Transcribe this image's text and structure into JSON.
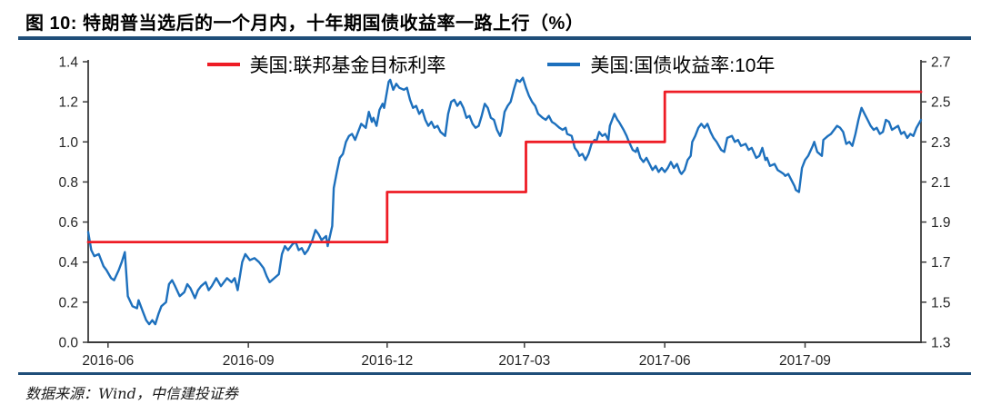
{
  "page": {
    "title": "图 10: 特朗普当选后的一个月内，十年期国债收益率一路上行（%）",
    "source_note": "数据来源：Wind，中信建投证券"
  },
  "colors": {
    "divider": "#1f4e79",
    "fed_funds_line": "#ee1c25",
    "treasury_line": "#1d70bd",
    "axis": "#3a3a3a",
    "tick_text": "#262626"
  },
  "chart_data": {
    "type": "line",
    "title": "图 10: 特朗普当选后的一个月内，十年期国债收益率一路上行（%）",
    "grid": false,
    "legend_position": "top-center",
    "x_domain": [
      "2016-06-02",
      "2017-11-30"
    ],
    "x_ticks": [
      {
        "date": "2016-06-15",
        "label": "2016-06"
      },
      {
        "date": "2016-09-15",
        "label": "2016-09"
      },
      {
        "date": "2016-12-15",
        "label": "2016-12"
      },
      {
        "date": "2017-03-15",
        "label": "2017-03"
      },
      {
        "date": "2017-06-15",
        "label": "2017-06"
      },
      {
        "date": "2017-09-15",
        "label": "2017-09"
      }
    ],
    "y_left": {
      "min": 0.0,
      "max": 1.4,
      "step": 0.2,
      "decimals": 1
    },
    "y_right": {
      "min": 1.3,
      "max": 2.7,
      "step": 0.2,
      "decimals": 1
    },
    "series": [
      {
        "name": "美国:联邦基金目标利率",
        "axis": "left",
        "draw": "step",
        "color_key": "fed_funds_line",
        "points": [
          [
            "2016-06-02",
            0.5
          ],
          [
            "2016-12-15",
            0.5
          ],
          [
            "2016-12-15",
            0.75
          ],
          [
            "2017-03-16",
            0.75
          ],
          [
            "2017-03-16",
            1.0
          ],
          [
            "2017-06-15",
            1.0
          ],
          [
            "2017-06-15",
            1.25
          ],
          [
            "2017-11-30",
            1.25
          ]
        ]
      },
      {
        "name": "美国:国债收益率:10年",
        "axis": "right",
        "draw": "line",
        "color_key": "treasury_line",
        "points": [
          [
            "2016-06-02",
            1.85
          ],
          [
            "2016-06-04",
            1.76
          ],
          [
            "2016-06-06",
            1.73
          ],
          [
            "2016-06-09",
            1.74
          ],
          [
            "2016-06-12",
            1.68
          ],
          [
            "2016-06-14",
            1.66
          ],
          [
            "2016-06-17",
            1.62
          ],
          [
            "2016-06-19",
            1.61
          ],
          [
            "2016-06-22",
            1.66
          ],
          [
            "2016-06-24",
            1.7
          ],
          [
            "2016-06-26",
            1.75
          ],
          [
            "2016-06-28",
            1.53
          ],
          [
            "2016-07-01",
            1.48
          ],
          [
            "2016-07-04",
            1.47
          ],
          [
            "2016-07-05",
            1.51
          ],
          [
            "2016-07-08",
            1.45
          ],
          [
            "2016-07-10",
            1.41
          ],
          [
            "2016-07-12",
            1.39
          ],
          [
            "2016-07-14",
            1.41
          ],
          [
            "2016-07-16",
            1.39
          ],
          [
            "2016-07-18",
            1.44
          ],
          [
            "2016-07-20",
            1.48
          ],
          [
            "2016-07-23",
            1.5
          ],
          [
            "2016-07-25",
            1.59
          ],
          [
            "2016-07-27",
            1.61
          ],
          [
            "2016-07-29",
            1.58
          ],
          [
            "2016-08-01",
            1.53
          ],
          [
            "2016-08-04",
            1.55
          ],
          [
            "2016-08-06",
            1.59
          ],
          [
            "2016-08-08",
            1.57
          ],
          [
            "2016-08-11",
            1.52
          ],
          [
            "2016-08-13",
            1.56
          ],
          [
            "2016-08-15",
            1.58
          ],
          [
            "2016-08-18",
            1.6
          ],
          [
            "2016-08-20",
            1.56
          ],
          [
            "2016-08-22",
            1.58
          ],
          [
            "2016-08-25",
            1.62
          ],
          [
            "2016-08-28",
            1.58
          ],
          [
            "2016-08-30",
            1.6
          ],
          [
            "2016-09-01",
            1.62
          ],
          [
            "2016-09-04",
            1.6
          ],
          [
            "2016-09-06",
            1.62
          ],
          [
            "2016-09-08",
            1.56
          ],
          [
            "2016-09-11",
            1.7
          ],
          [
            "2016-09-13",
            1.74
          ],
          [
            "2016-09-16",
            1.71
          ],
          [
            "2016-09-19",
            1.72
          ],
          [
            "2016-09-22",
            1.7
          ],
          [
            "2016-09-25",
            1.67
          ],
          [
            "2016-09-27",
            1.63
          ],
          [
            "2016-09-29",
            1.6
          ],
          [
            "2016-10-02",
            1.62
          ],
          [
            "2016-10-05",
            1.64
          ],
          [
            "2016-10-07",
            1.74
          ],
          [
            "2016-10-09",
            1.78
          ],
          [
            "2016-10-11",
            1.76
          ],
          [
            "2016-10-14",
            1.79
          ],
          [
            "2016-10-16",
            1.8
          ],
          [
            "2016-10-18",
            1.76
          ],
          [
            "2016-10-20",
            1.77
          ],
          [
            "2016-10-22",
            1.74
          ],
          [
            "2016-10-24",
            1.76
          ],
          [
            "2016-10-27",
            1.81
          ],
          [
            "2016-10-29",
            1.86
          ],
          [
            "2016-10-31",
            1.84
          ],
          [
            "2016-11-02",
            1.81
          ],
          [
            "2016-11-05",
            1.83
          ],
          [
            "2016-11-06",
            1.78
          ],
          [
            "2016-11-09",
            1.88
          ],
          [
            "2016-11-10",
            2.07
          ],
          [
            "2016-11-12",
            2.15
          ],
          [
            "2016-11-14",
            2.22
          ],
          [
            "2016-11-16",
            2.24
          ],
          [
            "2016-11-18",
            2.3
          ],
          [
            "2016-11-20",
            2.33
          ],
          [
            "2016-11-22",
            2.34
          ],
          [
            "2016-11-24",
            2.31
          ],
          [
            "2016-11-26",
            2.35
          ],
          [
            "2016-11-28",
            2.39
          ],
          [
            "2016-12-01",
            2.37
          ],
          [
            "2016-12-03",
            2.45
          ],
          [
            "2016-12-05",
            2.4
          ],
          [
            "2016-12-06",
            2.42
          ],
          [
            "2016-12-08",
            2.38
          ],
          [
            "2016-12-10",
            2.46
          ],
          [
            "2016-12-12",
            2.49
          ],
          [
            "2016-12-13",
            2.47
          ],
          [
            "2016-12-16",
            2.6
          ],
          [
            "2016-12-17",
            2.61
          ],
          [
            "2016-12-19",
            2.56
          ],
          [
            "2016-12-21",
            2.59
          ],
          [
            "2016-12-23",
            2.57
          ],
          [
            "2016-12-26",
            2.56
          ],
          [
            "2016-12-28",
            2.57
          ],
          [
            "2016-12-30",
            2.51
          ],
          [
            "2017-01-01",
            2.47
          ],
          [
            "2017-01-03",
            2.48
          ],
          [
            "2017-01-05",
            2.44
          ],
          [
            "2017-01-07",
            2.46
          ],
          [
            "2017-01-09",
            2.41
          ],
          [
            "2017-01-11",
            2.38
          ],
          [
            "2017-01-13",
            2.4
          ],
          [
            "2017-01-15",
            2.37
          ],
          [
            "2017-01-17",
            2.38
          ],
          [
            "2017-01-19",
            2.35
          ],
          [
            "2017-01-22",
            2.33
          ],
          [
            "2017-01-24",
            2.44
          ],
          [
            "2017-01-26",
            2.5
          ],
          [
            "2017-01-28",
            2.51
          ],
          [
            "2017-01-30",
            2.48
          ],
          [
            "2017-02-01",
            2.5
          ],
          [
            "2017-02-03",
            2.47
          ],
          [
            "2017-02-05",
            2.42
          ],
          [
            "2017-02-07",
            2.43
          ],
          [
            "2017-02-09",
            2.39
          ],
          [
            "2017-02-11",
            2.37
          ],
          [
            "2017-02-13",
            2.38
          ],
          [
            "2017-02-15",
            2.43
          ],
          [
            "2017-02-17",
            2.49
          ],
          [
            "2017-02-19",
            2.47
          ],
          [
            "2017-02-21",
            2.42
          ],
          [
            "2017-02-23",
            2.41
          ],
          [
            "2017-02-25",
            2.36
          ],
          [
            "2017-02-27",
            2.33
          ],
          [
            "2017-02-28",
            2.35
          ],
          [
            "2017-03-02",
            2.45
          ],
          [
            "2017-03-04",
            2.48
          ],
          [
            "2017-03-06",
            2.5
          ],
          [
            "2017-03-08",
            2.56
          ],
          [
            "2017-03-10",
            2.61
          ],
          [
            "2017-03-12",
            2.6
          ],
          [
            "2017-03-14",
            2.62
          ],
          [
            "2017-03-16",
            2.57
          ],
          [
            "2017-03-18",
            2.53
          ],
          [
            "2017-03-20",
            2.5
          ],
          [
            "2017-03-22",
            2.48
          ],
          [
            "2017-03-24",
            2.44
          ],
          [
            "2017-03-27",
            2.42
          ],
          [
            "2017-03-29",
            2.41
          ],
          [
            "2017-03-31",
            2.43
          ],
          [
            "2017-04-02",
            2.4
          ],
          [
            "2017-04-04",
            2.39
          ],
          [
            "2017-04-07",
            2.37
          ],
          [
            "2017-04-09",
            2.36
          ],
          [
            "2017-04-11",
            2.37
          ],
          [
            "2017-04-12",
            2.34
          ],
          [
            "2017-04-15",
            2.33
          ],
          [
            "2017-04-17",
            2.27
          ],
          [
            "2017-04-19",
            2.25
          ],
          [
            "2017-04-20",
            2.23
          ],
          [
            "2017-04-22",
            2.24
          ],
          [
            "2017-04-24",
            2.21
          ],
          [
            "2017-04-26",
            2.24
          ],
          [
            "2017-04-28",
            2.29
          ],
          [
            "2017-04-30",
            2.31
          ],
          [
            "2017-05-01",
            2.3
          ],
          [
            "2017-05-03",
            2.35
          ],
          [
            "2017-05-05",
            2.33
          ],
          [
            "2017-05-07",
            2.34
          ],
          [
            "2017-05-09",
            2.31
          ],
          [
            "2017-05-10",
            2.38
          ],
          [
            "2017-05-13",
            2.44
          ],
          [
            "2017-05-15",
            2.41
          ],
          [
            "2017-05-16",
            2.4
          ],
          [
            "2017-05-19",
            2.36
          ],
          [
            "2017-05-21",
            2.33
          ],
          [
            "2017-05-22",
            2.31
          ],
          [
            "2017-05-25",
            2.26
          ],
          [
            "2017-05-27",
            2.25
          ],
          [
            "2017-05-28",
            2.27
          ],
          [
            "2017-05-30",
            2.22
          ],
          [
            "2017-06-01",
            2.2
          ],
          [
            "2017-06-03",
            2.22
          ],
          [
            "2017-06-05",
            2.19
          ],
          [
            "2017-06-07",
            2.16
          ],
          [
            "2017-06-09",
            2.18
          ],
          [
            "2017-06-11",
            2.15
          ],
          [
            "2017-06-13",
            2.17
          ],
          [
            "2017-06-15",
            2.15
          ],
          [
            "2017-06-17",
            2.17
          ],
          [
            "2017-06-19",
            2.2
          ],
          [
            "2017-06-21",
            2.17
          ],
          [
            "2017-06-23",
            2.19
          ],
          [
            "2017-06-25",
            2.15
          ],
          [
            "2017-06-26",
            2.14
          ],
          [
            "2017-06-28",
            2.16
          ],
          [
            "2017-06-30",
            2.21
          ],
          [
            "2017-07-02",
            2.23
          ],
          [
            "2017-07-03",
            2.3
          ],
          [
            "2017-07-05",
            2.33
          ],
          [
            "2017-07-07",
            2.37
          ],
          [
            "2017-07-09",
            2.39
          ],
          [
            "2017-07-11",
            2.37
          ],
          [
            "2017-07-13",
            2.39
          ],
          [
            "2017-07-15",
            2.35
          ],
          [
            "2017-07-17",
            2.32
          ],
          [
            "2017-07-19",
            2.3
          ],
          [
            "2017-07-22",
            2.26
          ],
          [
            "2017-07-24",
            2.25
          ],
          [
            "2017-07-26",
            2.32
          ],
          [
            "2017-07-29",
            2.33
          ],
          [
            "2017-07-31",
            2.3
          ],
          [
            "2017-08-02",
            2.31
          ],
          [
            "2017-08-04",
            2.28
          ],
          [
            "2017-08-07",
            2.29
          ],
          [
            "2017-08-09",
            2.26
          ],
          [
            "2017-08-11",
            2.27
          ],
          [
            "2017-08-14",
            2.22
          ],
          [
            "2017-08-16",
            2.23
          ],
          [
            "2017-08-18",
            2.27
          ],
          [
            "2017-08-20",
            2.21
          ],
          [
            "2017-08-21",
            2.22
          ],
          [
            "2017-08-23",
            2.18
          ],
          [
            "2017-08-26",
            2.19
          ],
          [
            "2017-08-28",
            2.16
          ],
          [
            "2017-08-30",
            2.15
          ],
          [
            "2017-09-01",
            2.14
          ],
          [
            "2017-09-02",
            2.13
          ],
          [
            "2017-09-04",
            2.14
          ],
          [
            "2017-09-06",
            2.11
          ],
          [
            "2017-09-08",
            2.08
          ],
          [
            "2017-09-09",
            2.06
          ],
          [
            "2017-09-11",
            2.05
          ],
          [
            "2017-09-13",
            2.17
          ],
          [
            "2017-09-15",
            2.21
          ],
          [
            "2017-09-17",
            2.23
          ],
          [
            "2017-09-20",
            2.28
          ],
          [
            "2017-09-21",
            2.3
          ],
          [
            "2017-09-23",
            2.25
          ],
          [
            "2017-09-26",
            2.23
          ],
          [
            "2017-09-27",
            2.31
          ],
          [
            "2017-09-30",
            2.33
          ],
          [
            "2017-10-02",
            2.34
          ],
          [
            "2017-10-04",
            2.36
          ],
          [
            "2017-10-06",
            2.38
          ],
          [
            "2017-10-08",
            2.37
          ],
          [
            "2017-10-10",
            2.35
          ],
          [
            "2017-10-12",
            2.29
          ],
          [
            "2017-10-14",
            2.3
          ],
          [
            "2017-10-16",
            2.28
          ],
          [
            "2017-10-18",
            2.34
          ],
          [
            "2017-10-20",
            2.41
          ],
          [
            "2017-10-22",
            2.47
          ],
          [
            "2017-10-24",
            2.44
          ],
          [
            "2017-10-26",
            2.41
          ],
          [
            "2017-10-28",
            2.38
          ],
          [
            "2017-10-30",
            2.36
          ],
          [
            "2017-11-01",
            2.37
          ],
          [
            "2017-11-03",
            2.34
          ],
          [
            "2017-11-05",
            2.35
          ],
          [
            "2017-11-07",
            2.41
          ],
          [
            "2017-11-09",
            2.4
          ],
          [
            "2017-11-11",
            2.36
          ],
          [
            "2017-11-13",
            2.37
          ],
          [
            "2017-11-15",
            2.38
          ],
          [
            "2017-11-17",
            2.34
          ],
          [
            "2017-11-19",
            2.35
          ],
          [
            "2017-11-21",
            2.32
          ],
          [
            "2017-11-23",
            2.34
          ],
          [
            "2017-11-25",
            2.33
          ],
          [
            "2017-11-27",
            2.37
          ],
          [
            "2017-11-30",
            2.41
          ]
        ]
      }
    ]
  }
}
